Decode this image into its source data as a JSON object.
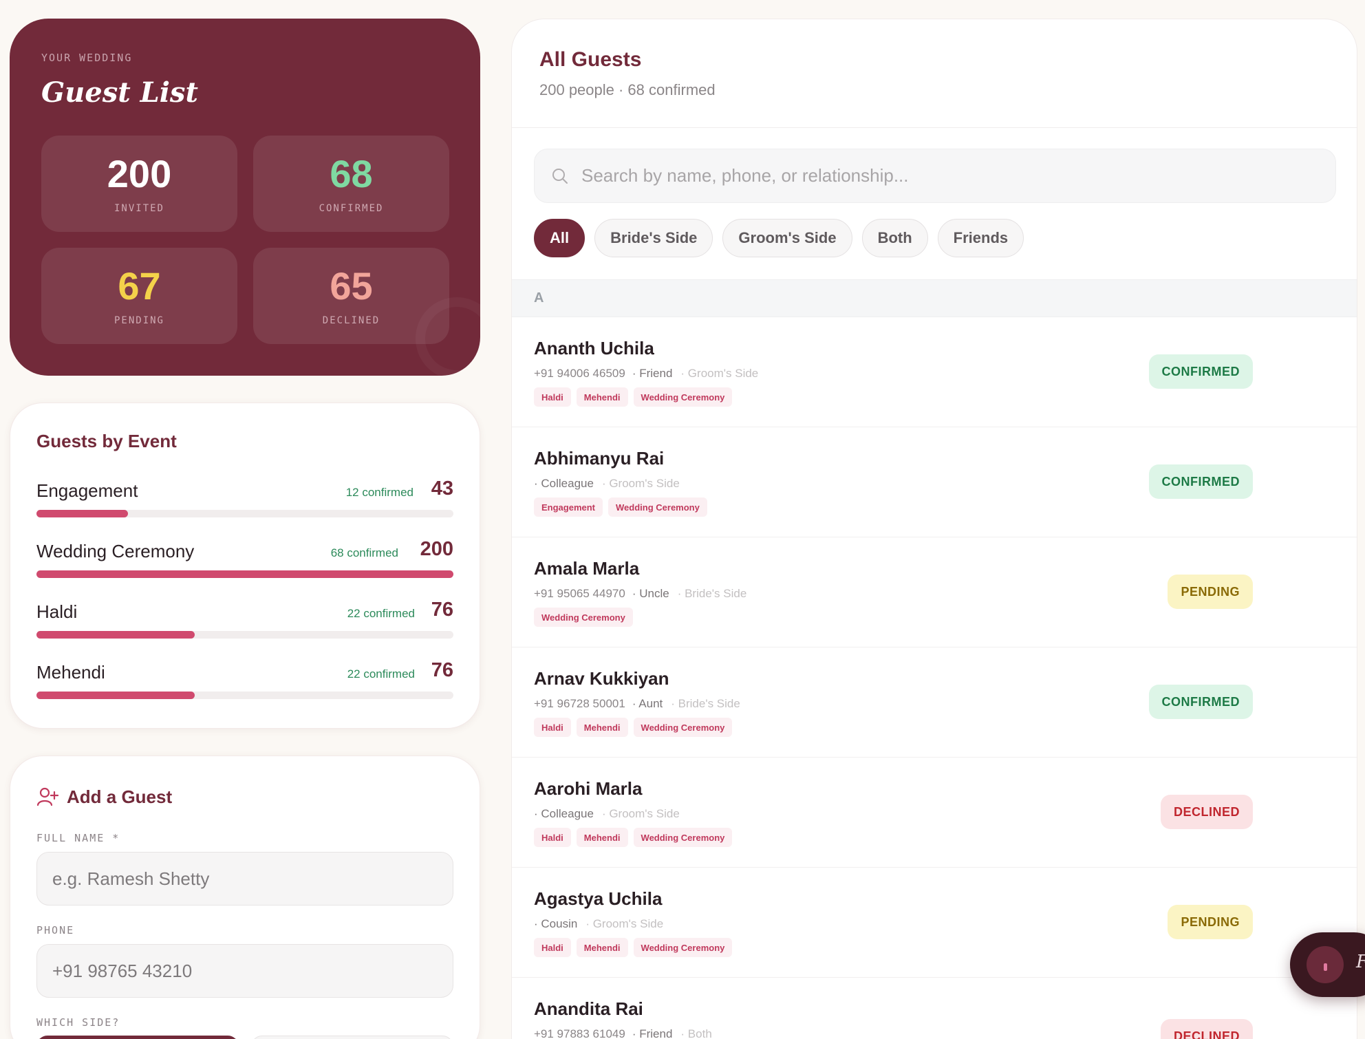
{
  "hero": {
    "eyebrow": "YOUR WEDDING",
    "title": "Guest List",
    "stats": [
      {
        "value": "200",
        "label": "INVITED",
        "color": "#ffffff"
      },
      {
        "value": "68",
        "label": "CONFIRMED",
        "color": "#7fd9a2"
      },
      {
        "value": "67",
        "label": "PENDING",
        "color": "#f4d24a"
      },
      {
        "value": "65",
        "label": "DECLINED",
        "color": "#f2a59a"
      }
    ]
  },
  "events": {
    "title": "Guests by Event",
    "items": [
      {
        "name": "Engagement",
        "confirmed": "12 confirmed",
        "total": "43",
        "fill_fraction": 0.22
      },
      {
        "name": "Wedding Ceremony",
        "confirmed": "68 confirmed",
        "total": "200",
        "fill_fraction": 1.0
      },
      {
        "name": "Haldi",
        "confirmed": "22 confirmed",
        "total": "76",
        "fill_fraction": 0.38
      },
      {
        "name": "Mehendi",
        "confirmed": "22 confirmed",
        "total": "76",
        "fill_fraction": 0.38
      }
    ]
  },
  "add_guest": {
    "title": "Add a Guest",
    "icon": "add-user-icon",
    "full_name_label": "FULL NAME *",
    "full_name_placeholder": "e.g. Ramesh Shetty",
    "phone_label": "PHONE",
    "phone_placeholder": "+91 98765 43210",
    "side_label": "WHICH SIDE?"
  },
  "guest_list": {
    "title": "All Guests",
    "subtitle": "200 people · 68 confirmed",
    "search_placeholder": "Search by name, phone, or relationship...",
    "filters": [
      "All",
      "Bride's Side",
      "Groom's Side",
      "Both",
      "Friends"
    ],
    "active_filter": "All",
    "section_letter": "A",
    "guests": [
      {
        "name": "Ananth Uchila",
        "phone": "+91 94006 46509",
        "relation": "· Friend",
        "side": "· Groom's Side",
        "tags": [
          "Haldi",
          "Mehendi",
          "Wedding Ceremony"
        ],
        "status": "CONFIRMED",
        "status_type": "confirmed"
      },
      {
        "name": "Abhimanyu Rai",
        "phone": "",
        "relation": "· Colleague",
        "side": "· Groom's Side",
        "tags": [
          "Engagement",
          "Wedding Ceremony"
        ],
        "status": "CONFIRMED",
        "status_type": "confirmed"
      },
      {
        "name": "Amala Marla",
        "phone": "+91 95065 44970",
        "relation": "· Uncle",
        "side": "· Bride's Side",
        "tags": [
          "Wedding Ceremony"
        ],
        "status": "PENDING",
        "status_type": "pending"
      },
      {
        "name": "Arnav Kukkiyan",
        "phone": "+91 96728 50001",
        "relation": "· Aunt",
        "side": "· Bride's Side",
        "tags": [
          "Haldi",
          "Mehendi",
          "Wedding Ceremony"
        ],
        "status": "CONFIRMED",
        "status_type": "confirmed"
      },
      {
        "name": "Aarohi Marla",
        "phone": "",
        "relation": "· Colleague",
        "side": "· Groom's Side",
        "tags": [
          "Haldi",
          "Mehendi",
          "Wedding Ceremony"
        ],
        "status": "DECLINED",
        "status_type": "declined"
      },
      {
        "name": "Agastya Uchila",
        "phone": "",
        "relation": "· Cousin",
        "side": "· Groom's Side",
        "tags": [
          "Haldi",
          "Mehendi",
          "Wedding Ceremony"
        ],
        "status": "PENDING",
        "status_type": "pending"
      },
      {
        "name": "Anandita Rai",
        "phone": "+91 97883 61049",
        "relation": "· Friend",
        "side": "· Both",
        "tags": [],
        "status": "DECLINED",
        "status_type": "declined"
      }
    ]
  },
  "floating": {
    "label": "F"
  },
  "colors": {
    "brand": "#722a3a",
    "accent_bar": "#d04a6e",
    "confirmed_text": "#2c8a5a"
  }
}
